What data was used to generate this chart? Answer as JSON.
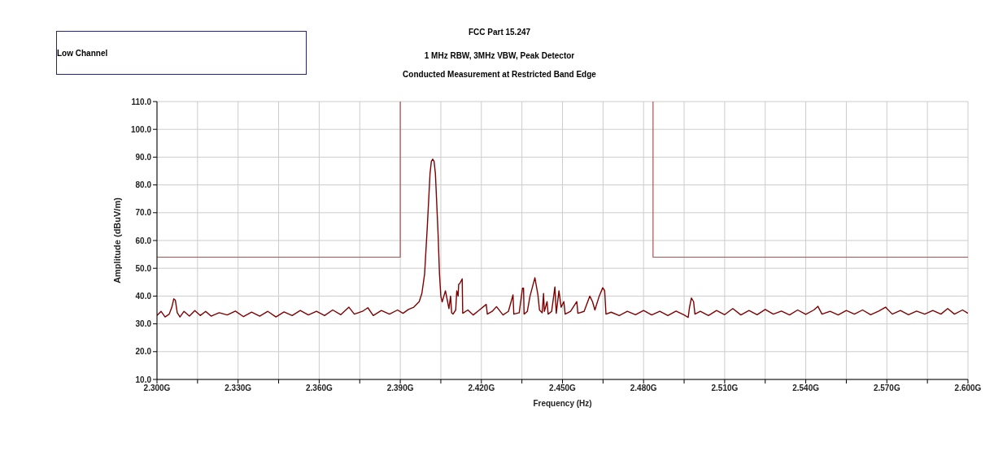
{
  "chart_data": {
    "type": "line",
    "title": "FCC Part 15.247",
    "subtitle": "1 MHz RBW, 3MHz VBW, Peak Detector\nConducted Measurement at Restricted Band Edge",
    "xlabel": "Frequency (Hz)",
    "ylabel": "Amplitude (dBuV/m)",
    "annotations": [
      "Low Channel"
    ],
    "xlim": [
      2.3,
      2.6
    ],
    "xticks": [
      {
        "value": 2.3,
        "label": "2.300G"
      },
      {
        "value": 2.315,
        "label": null
      },
      {
        "value": 2.33,
        "label": "2.330G"
      },
      {
        "value": 2.345,
        "label": null
      },
      {
        "value": 2.36,
        "label": "2.360G"
      },
      {
        "value": 2.375,
        "label": null
      },
      {
        "value": 2.39,
        "label": "2.390G"
      },
      {
        "value": 2.405,
        "label": null
      },
      {
        "value": 2.42,
        "label": "2.420G"
      },
      {
        "value": 2.435,
        "label": null
      },
      {
        "value": 2.45,
        "label": "2.450G"
      },
      {
        "value": 2.465,
        "label": null
      },
      {
        "value": 2.48,
        "label": "2.480G"
      },
      {
        "value": 2.495,
        "label": null
      },
      {
        "value": 2.51,
        "label": "2.510G"
      },
      {
        "value": 2.525,
        "label": null
      },
      {
        "value": 2.54,
        "label": "2.540G"
      },
      {
        "value": 2.555,
        "label": null
      },
      {
        "value": 2.57,
        "label": "2.570G"
      },
      {
        "value": 2.585,
        "label": null
      },
      {
        "value": 2.6,
        "label": "2.600G"
      }
    ],
    "ylim": [
      10,
      110
    ],
    "yticks": [
      {
        "value": 10,
        "label": "10.0"
      },
      {
        "value": 20,
        "label": "20.0"
      },
      {
        "value": 30,
        "label": "30.0"
      },
      {
        "value": 40,
        "label": "40.0"
      },
      {
        "value": 50,
        "label": "50.0"
      },
      {
        "value": 60,
        "label": "60.0"
      },
      {
        "value": 70,
        "label": "70.0"
      },
      {
        "value": 80,
        "label": "80.0"
      },
      {
        "value": 90,
        "label": "90.0"
      },
      {
        "value": 100,
        "label": "100.0"
      },
      {
        "value": 110,
        "label": "110.0"
      }
    ],
    "grid": true,
    "legend": false,
    "marker": "none",
    "line_style": "solid",
    "series": [
      {
        "color": "#b05050",
        "x": [
          2.3,
          2.39,
          2.39
        ],
        "values": [
          54,
          54,
          110
        ]
      },
      {
        "color": "#b05050",
        "x": [
          2.4835,
          2.4835,
          2.6
        ],
        "values": [
          110,
          54,
          54
        ]
      },
      {
        "color": "#800000",
        "x": [
          2.3,
          2.3015,
          2.303,
          2.3045,
          2.3055,
          2.3062,
          2.3068,
          2.3075,
          2.3085,
          2.31,
          2.312,
          2.314,
          2.316,
          2.318,
          2.32,
          2.323,
          2.326,
          2.329,
          2.332,
          2.335,
          2.338,
          2.341,
          2.344,
          2.347,
          2.35,
          2.353,
          2.356,
          2.359,
          2.362,
          2.365,
          2.368,
          2.371,
          2.373,
          2.376,
          2.378,
          2.38,
          2.383,
          2.386,
          2.389,
          2.391,
          2.393,
          2.395,
          2.397,
          2.398,
          2.399,
          2.4,
          2.401,
          2.4015,
          2.402,
          2.4025,
          2.403,
          2.404,
          2.4045,
          2.405,
          2.4055,
          2.4067,
          2.4075,
          2.408,
          2.4086,
          2.409,
          2.4095,
          2.4105,
          2.4109,
          2.4114,
          2.4116,
          2.412,
          2.4129,
          2.4131,
          2.415,
          2.417,
          2.419,
          2.4218,
          2.4222,
          2.424,
          2.4256,
          2.428,
          2.43,
          2.4317,
          2.432,
          2.434,
          2.4352,
          2.4356,
          2.4358,
          2.437,
          2.438,
          2.4398,
          2.4409,
          2.4415,
          2.4425,
          2.443,
          2.4433,
          2.4443,
          2.4447,
          2.446,
          2.4472,
          2.4477,
          2.4487,
          2.4495,
          2.4505,
          2.451,
          2.453,
          2.4553,
          2.4557,
          2.458,
          2.4601,
          2.4611,
          2.462,
          2.4636,
          2.4649,
          2.4656,
          2.4661,
          2.468,
          2.471,
          2.474,
          2.477,
          2.48,
          2.483,
          2.486,
          2.489,
          2.492,
          2.495,
          2.4965,
          2.497,
          2.4977,
          2.4985,
          2.499,
          2.501,
          2.504,
          2.507,
          2.51,
          2.513,
          2.516,
          2.519,
          2.522,
          2.525,
          2.528,
          2.531,
          2.534,
          2.537,
          2.54,
          2.543,
          2.5445,
          2.546,
          2.549,
          2.552,
          2.555,
          2.558,
          2.561,
          2.564,
          2.567,
          2.5695,
          2.572,
          2.575,
          2.578,
          2.581,
          2.584,
          2.587,
          2.59,
          2.5925,
          2.595,
          2.598,
          2.6
        ],
        "values": [
          33,
          34.5,
          32.5,
          33.5,
          36,
          39,
          38.5,
          34,
          32.5,
          34.5,
          32.8,
          34.8,
          33,
          34.5,
          32.8,
          34,
          33.2,
          34.6,
          32.6,
          34.2,
          32.8,
          34.5,
          32.5,
          34.3,
          33,
          34.8,
          33.2,
          34.5,
          33,
          35,
          33.3,
          36,
          33.5,
          34.5,
          35.8,
          33,
          34.8,
          33.5,
          35,
          33.8,
          35.2,
          36,
          38,
          41,
          48,
          65,
          84,
          88.5,
          89.3,
          88.5,
          84,
          62,
          48,
          40,
          37.9,
          41.9,
          38,
          35.5,
          40,
          34,
          33.5,
          35,
          41.9,
          40,
          44.2,
          44.5,
          46.2,
          33.8,
          35,
          33.2,
          34.8,
          37,
          33.5,
          34.5,
          36.2,
          33.2,
          34.5,
          40.4,
          33.5,
          34,
          42.8,
          42.8,
          33.5,
          34.5,
          40,
          46.6,
          40.5,
          35,
          34,
          40.9,
          34.5,
          38,
          33.5,
          34.5,
          43.3,
          33.8,
          41.9,
          36,
          38,
          33.5,
          34.5,
          38,
          33.8,
          34.5,
          40,
          38,
          35,
          40,
          43,
          42,
          33.5,
          34.2,
          33,
          34.5,
          33.3,
          34.8,
          33.2,
          34.5,
          33,
          34.6,
          33.2,
          32.3,
          36,
          39.3,
          38,
          33.5,
          34.5,
          33,
          34.8,
          33.3,
          35.5,
          33.2,
          34.8,
          33.3,
          35.2,
          33.5,
          34.6,
          33.2,
          35,
          33.4,
          35,
          36.3,
          33.5,
          34.5,
          33.2,
          34.8,
          33.5,
          35,
          33.3,
          34.6,
          36,
          33.5,
          34.8,
          33.3,
          34.6,
          33.5,
          34.8,
          33.5,
          35.5,
          33.5,
          35,
          33.8
        ]
      }
    ]
  }
}
